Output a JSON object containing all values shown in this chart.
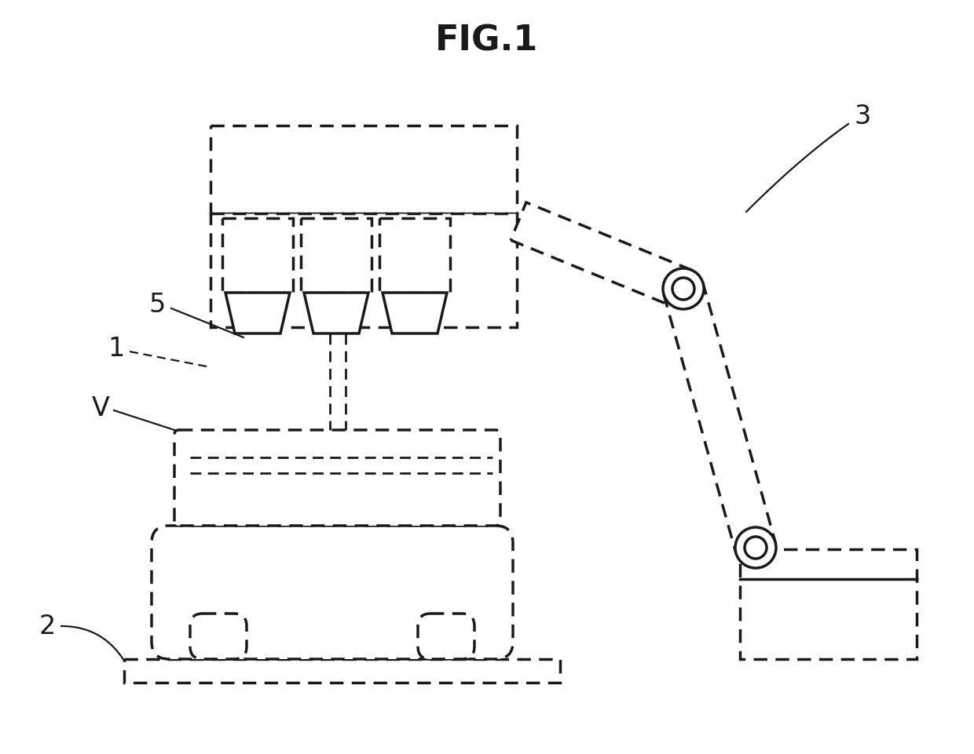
{
  "title": "FIG.1",
  "bg_color": "#ffffff",
  "line_color": "#1a1a1a",
  "title_fontsize": 32,
  "label_fontsize": 24
}
